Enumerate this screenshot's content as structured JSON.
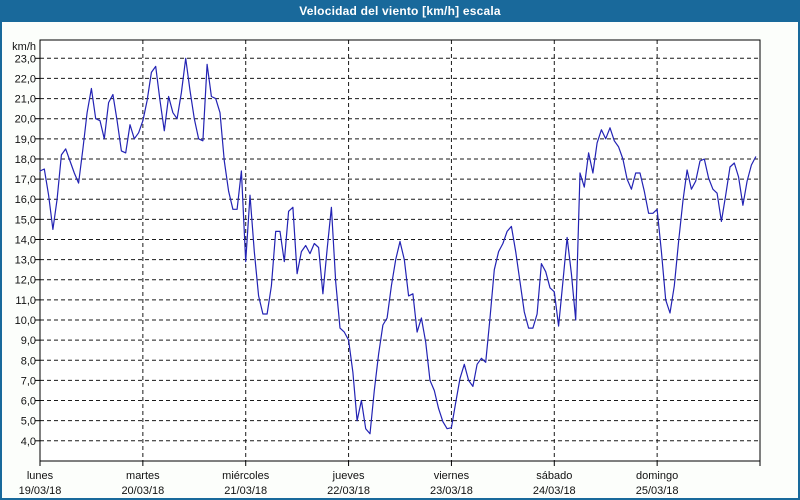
{
  "window": {
    "title": "Velocidad del viento [km/h] escala",
    "titlebar_bg": "#19699b",
    "border_color": "#19699b",
    "background": "#fcfefb"
  },
  "chart_data": {
    "type": "line",
    "title": "Velocidad del viento [km/h] escala",
    "ylabel": "km/h",
    "unit_label": "km/h",
    "ylim": [
      4,
      23
    ],
    "ytick_step": 1,
    "grid": "dashed",
    "legend": "none",
    "plot_bg": "#ffffff",
    "grid_color": "#1a1a1a",
    "line_color": "#2323b4",
    "y_ticks": [
      "23,0",
      "22,0",
      "21,0",
      "20,0",
      "19,0",
      "18,0",
      "17,0",
      "16,0",
      "15,0",
      "14,0",
      "13,0",
      "12,0",
      "11,0",
      "10,0",
      "9,0",
      "8,0",
      "7,0",
      "6,0",
      "5,0",
      "4,0"
    ],
    "days": [
      {
        "name": "lunes",
        "date": "19/03/18"
      },
      {
        "name": "martes",
        "date": "20/03/18"
      },
      {
        "name": "miércoles",
        "date": "21/03/18"
      },
      {
        "name": "jueves",
        "date": "22/03/18"
      },
      {
        "name": "viernes",
        "date": "23/03/18"
      },
      {
        "name": "sábado",
        "date": "24/03/18"
      },
      {
        "name": "domingo",
        "date": "25/03/18"
      }
    ],
    "points_per_day": 24,
    "x_unit": "hour",
    "series": [
      {
        "name": "Velocidad del viento",
        "values": [
          17.4,
          17.5,
          16.2,
          14.5,
          16.0,
          18.2,
          18.5,
          17.9,
          17.3,
          16.8,
          18.5,
          20.3,
          21.5,
          20.0,
          19.9,
          19.0,
          20.8,
          21.2,
          19.9,
          18.4,
          18.3,
          19.7,
          19.0,
          19.3,
          19.9,
          20.9,
          22.3,
          22.6,
          20.9,
          19.4,
          21.1,
          20.3,
          20.0,
          21.3,
          23.0,
          21.4,
          20.0,
          19.0,
          18.9,
          22.7,
          21.1,
          21.0,
          20.3,
          17.9,
          16.4,
          15.5,
          15.5,
          17.4,
          12.9,
          16.2,
          13.4,
          11.2,
          10.3,
          10.3,
          11.7,
          14.4,
          14.4,
          12.9,
          15.4,
          15.6,
          12.3,
          13.4,
          13.7,
          13.3,
          13.8,
          13.6,
          11.3,
          13.5,
          15.6,
          11.9,
          9.6,
          9.4,
          9.0,
          7.4,
          5.0,
          6.0,
          4.6,
          4.35,
          6.5,
          8.3,
          9.75,
          10.1,
          11.7,
          13.0,
          13.9,
          13.0,
          11.2,
          11.3,
          9.4,
          10.1,
          8.9,
          7.0,
          6.5,
          5.6,
          4.95,
          4.6,
          4.65,
          5.9,
          7.1,
          7.8,
          7.0,
          6.7,
          7.8,
          8.1,
          7.9,
          10.1,
          12.5,
          13.4,
          13.8,
          14.4,
          14.65,
          13.4,
          11.9,
          10.4,
          9.6,
          9.6,
          10.3,
          12.8,
          12.4,
          11.6,
          11.4,
          9.7,
          11.9,
          14.1,
          12.3,
          10.0,
          17.3,
          16.6,
          18.3,
          17.3,
          18.8,
          19.45,
          19.0,
          19.55,
          18.9,
          18.6,
          18.0,
          17.0,
          16.5,
          17.3,
          17.3,
          16.4,
          15.3,
          15.3,
          15.5,
          13.4,
          11.0,
          10.35,
          11.7,
          13.9,
          15.9,
          17.45,
          16.5,
          16.9,
          17.9,
          18.0,
          17.05,
          16.5,
          16.3,
          14.9,
          16.2,
          17.6,
          17.8,
          17.1,
          15.7,
          16.9,
          17.7,
          18.1
        ]
      }
    ]
  }
}
